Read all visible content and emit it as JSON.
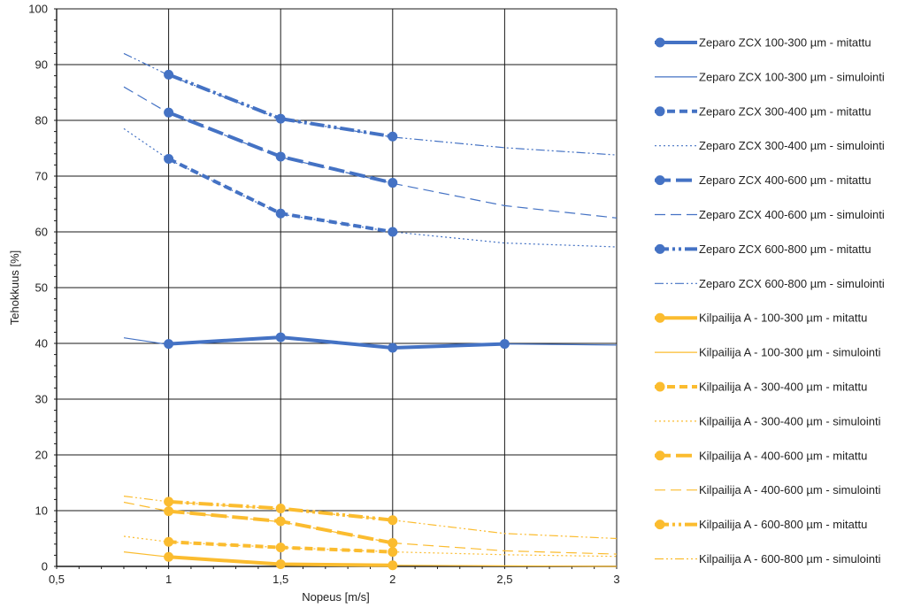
{
  "chart_data": {
    "type": "line",
    "title": "",
    "xlabel": "Nopeus [m/s]",
    "ylabel": "Tehokkuus [%]",
    "xlim": [
      0.5,
      3
    ],
    "ylim": [
      0,
      100
    ],
    "x_ticks": [
      0.5,
      1,
      1.5,
      2,
      2.5,
      3
    ],
    "x_tick_labels": [
      "0,5",
      "1",
      "1,5",
      "2",
      "2,5",
      "3"
    ],
    "y_ticks": [
      0,
      10,
      20,
      30,
      40,
      50,
      60,
      70,
      80,
      90,
      100
    ],
    "y_tick_labels": [
      "0",
      "10",
      "20",
      "30",
      "40",
      "50",
      "60",
      "70",
      "80",
      "90",
      "100"
    ],
    "grid": true,
    "legend_position": "right",
    "series": [
      {
        "name": "Zeparo ZCX 100-300 µm - mitattu",
        "color": "#4472c4",
        "kind": "measured",
        "dash": "solid",
        "points": [
          [
            1,
            39.9
          ],
          [
            1.5,
            41.1
          ],
          [
            2,
            39.2
          ],
          [
            2.5,
            39.9
          ]
        ]
      },
      {
        "name": "Zeparo ZCX 100-300 µm - simulointi",
        "color": "#4472c4",
        "kind": "simulated",
        "dash": "solid",
        "points": [
          [
            0.8,
            41.0
          ],
          [
            1,
            39.8
          ],
          [
            1.5,
            41.0
          ],
          [
            2,
            39.3
          ],
          [
            2.5,
            39.9
          ],
          [
            3,
            39.7
          ]
        ]
      },
      {
        "name": "Zeparo ZCX 300-400 µm - mitattu",
        "color": "#4472c4",
        "kind": "measured",
        "dash": "dash",
        "points": [
          [
            1,
            73.1
          ],
          [
            1.5,
            63.3
          ],
          [
            2,
            60.0
          ]
        ]
      },
      {
        "name": "Zeparo ZCX 300-400 µm - simulointi",
        "color": "#4472c4",
        "kind": "simulated",
        "dash": "dot",
        "points": [
          [
            0.8,
            78.5
          ],
          [
            1,
            73.0
          ],
          [
            1.5,
            63.2
          ],
          [
            2,
            60.0
          ],
          [
            2.5,
            58.0
          ],
          [
            3,
            57.3
          ]
        ]
      },
      {
        "name": "Zeparo ZCX 400-600 µm - mitattu",
        "color": "#4472c4",
        "kind": "measured",
        "dash": "longdash",
        "points": [
          [
            1,
            81.4
          ],
          [
            1.5,
            73.5
          ],
          [
            2,
            68.8
          ]
        ]
      },
      {
        "name": "Zeparo ZCX 400-600 µm - simulointi",
        "color": "#4472c4",
        "kind": "simulated",
        "dash": "longdash",
        "points": [
          [
            0.8,
            86.0
          ],
          [
            1,
            81.3
          ],
          [
            1.5,
            73.4
          ],
          [
            2,
            68.7
          ],
          [
            2.5,
            64.7
          ],
          [
            3,
            62.5
          ]
        ]
      },
      {
        "name": "Zeparo ZCX 600-800 µm - mitattu",
        "color": "#4472c4",
        "kind": "measured",
        "dash": "dashdotdot",
        "points": [
          [
            1,
            88.2
          ],
          [
            1.5,
            80.3
          ],
          [
            2,
            77.1
          ]
        ]
      },
      {
        "name": "Zeparo ZCX 600-800 µm - simulointi",
        "color": "#4472c4",
        "kind": "simulated",
        "dash": "dashdotdot",
        "points": [
          [
            0.8,
            92.0
          ],
          [
            1,
            88.1
          ],
          [
            1.5,
            80.2
          ],
          [
            2,
            77.0
          ],
          [
            2.5,
            75.1
          ],
          [
            3,
            73.8
          ]
        ]
      },
      {
        "name": "Kilpailija A - 100-300 µm - mitattu",
        "color": "#fbbc2f",
        "kind": "measured",
        "dash": "solid",
        "points": [
          [
            1,
            1.7
          ],
          [
            1.5,
            0.4
          ],
          [
            2,
            0.2
          ]
        ]
      },
      {
        "name": "Kilpailija A - 100-300 µm - simulointi",
        "color": "#fbbc2f",
        "kind": "simulated",
        "dash": "solid",
        "points": [
          [
            0.8,
            2.6
          ],
          [
            1,
            1.7
          ],
          [
            1.5,
            0.4
          ],
          [
            2,
            0.2
          ],
          [
            2.5,
            0.1
          ],
          [
            3,
            0.0
          ]
        ]
      },
      {
        "name": "Kilpailija A - 300-400 µm - mitattu",
        "color": "#fbbc2f",
        "kind": "measured",
        "dash": "dash",
        "points": [
          [
            1,
            4.4
          ],
          [
            1.5,
            3.4
          ],
          [
            2,
            2.6
          ]
        ]
      },
      {
        "name": "Kilpailija A - 300-400 µm - simulointi",
        "color": "#fbbc2f",
        "kind": "simulated",
        "dash": "dot",
        "points": [
          [
            0.8,
            5.4
          ],
          [
            1,
            4.4
          ],
          [
            1.5,
            3.4
          ],
          [
            2,
            2.6
          ],
          [
            2.5,
            2.1
          ],
          [
            3,
            1.8
          ]
        ]
      },
      {
        "name": "Kilpailija A - 400-600 µm - mitattu",
        "color": "#fbbc2f",
        "kind": "measured",
        "dash": "longdash",
        "points": [
          [
            1,
            9.9
          ],
          [
            1.5,
            8.1
          ],
          [
            2,
            4.2
          ]
        ]
      },
      {
        "name": "Kilpailija A - 400-600 µm - simulointi",
        "color": "#fbbc2f",
        "kind": "simulated",
        "dash": "longdash",
        "points": [
          [
            0.8,
            11.5
          ],
          [
            1,
            9.9
          ],
          [
            1.5,
            8.0
          ],
          [
            2,
            4.2
          ],
          [
            2.5,
            2.8
          ],
          [
            3,
            2.2
          ]
        ]
      },
      {
        "name": "Kilpailija A - 600-800 µm - mitattu",
        "color": "#fbbc2f",
        "kind": "measured",
        "dash": "dashdotdot",
        "points": [
          [
            1,
            11.6
          ],
          [
            1.5,
            10.4
          ],
          [
            2,
            8.3
          ]
        ]
      },
      {
        "name": "Kilpailija A - 600-800 µm - simulointi",
        "color": "#fbbc2f",
        "kind": "simulated",
        "dash": "dashdotdot",
        "points": [
          [
            0.8,
            12.6
          ],
          [
            1,
            11.6
          ],
          [
            1.5,
            10.3
          ],
          [
            2,
            8.3
          ],
          [
            2.5,
            5.9
          ],
          [
            3,
            5.0
          ]
        ]
      }
    ]
  }
}
